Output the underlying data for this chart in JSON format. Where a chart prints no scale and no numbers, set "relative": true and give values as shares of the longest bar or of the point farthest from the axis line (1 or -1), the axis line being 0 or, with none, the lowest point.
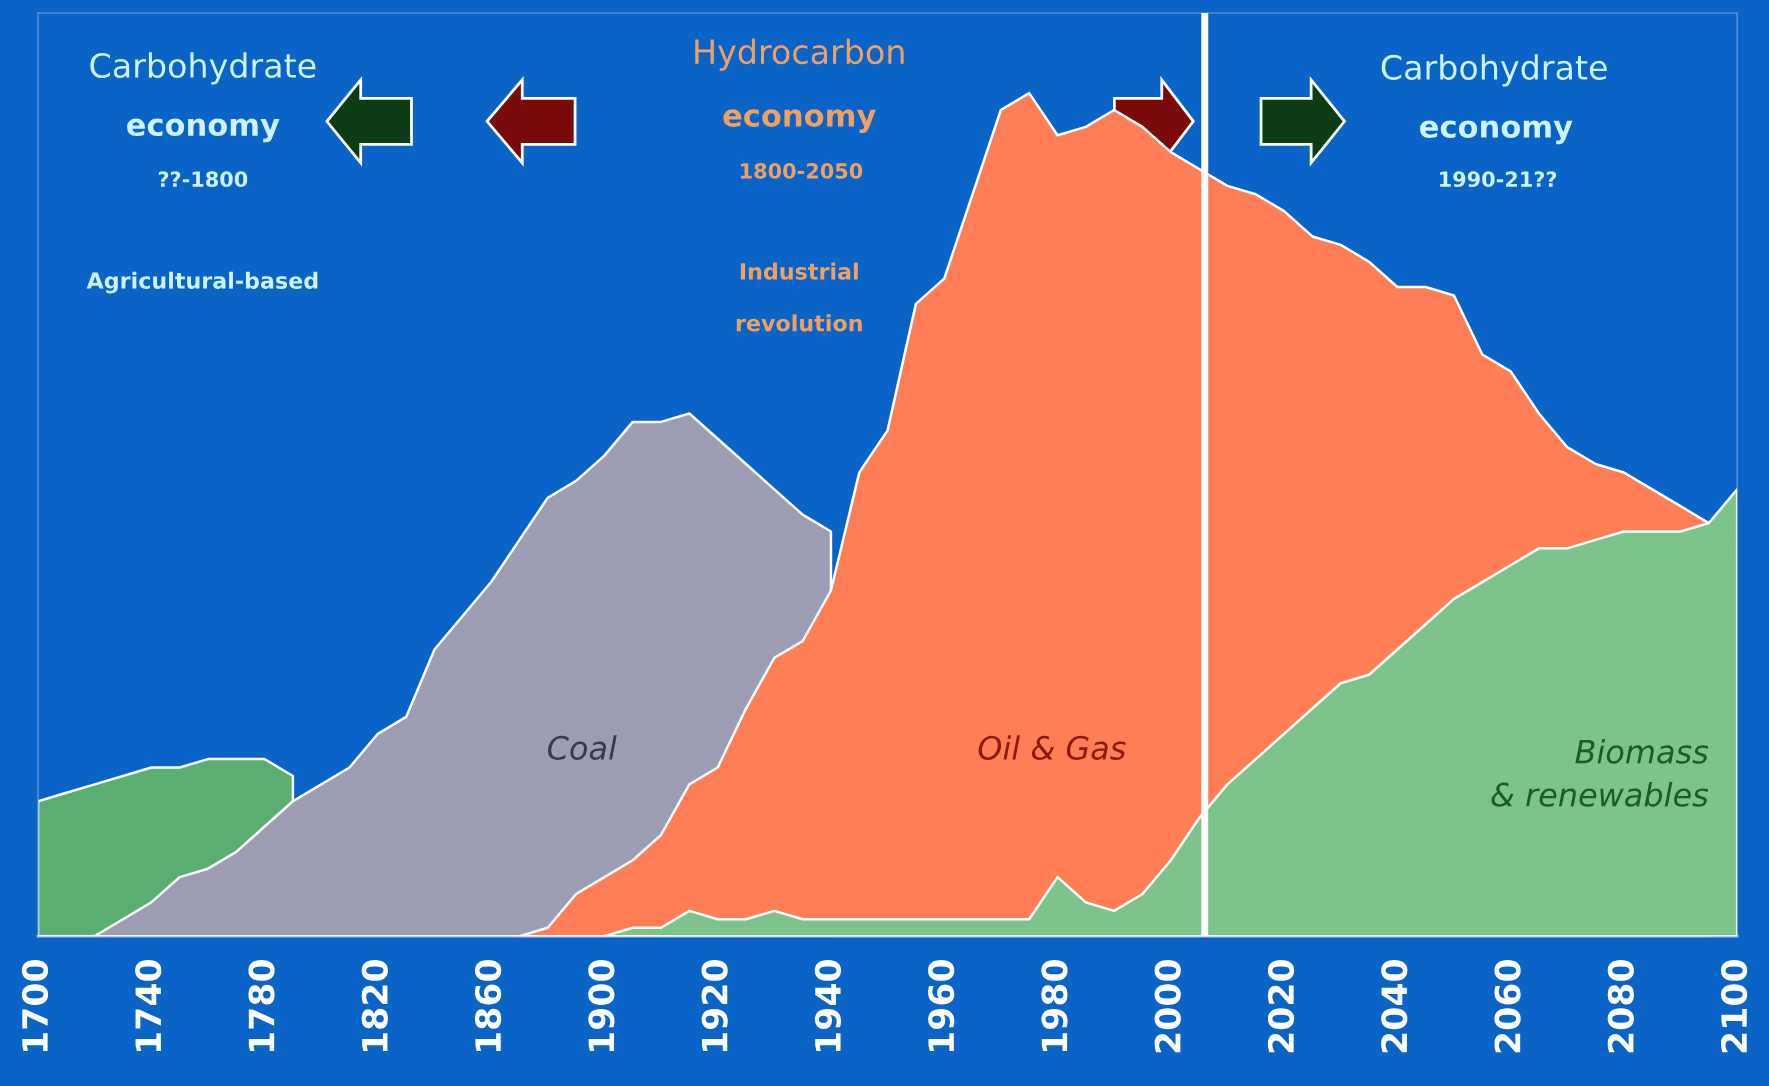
{
  "chart_data": {
    "type": "area",
    "relative": true,
    "categories": [
      "1700",
      null,
      null,
      null,
      "1740",
      null,
      null,
      null,
      "1780",
      null,
      null,
      null,
      "1820",
      null,
      null,
      null,
      "1860",
      null,
      null,
      null,
      "1900",
      null,
      null,
      null,
      "1920",
      null,
      null,
      null,
      "1940",
      null,
      null,
      null,
      "1960",
      null,
      null,
      null,
      "1980",
      null,
      null,
      null,
      "2000",
      null,
      null,
      null,
      "2020",
      null,
      null,
      null,
      "2040",
      null,
      null,
      null,
      "2060",
      null,
      null,
      null,
      "2080",
      null,
      null,
      null,
      "2100"
    ],
    "series": [
      {
        "color": "#5aae72",
        "values": [
          0.16,
          0.17,
          0.18,
          0.19,
          0.2,
          0.2,
          0.21,
          0.21,
          0.21,
          0.19,
          null,
          null,
          null,
          null,
          null,
          null,
          null,
          null,
          null,
          null,
          null,
          null,
          null,
          null,
          null,
          null,
          null,
          null,
          null,
          null,
          null,
          null,
          null,
          null,
          null,
          null,
          null,
          null,
          null,
          null,
          null,
          null,
          null,
          null,
          null,
          null,
          null,
          null,
          null,
          null,
          null,
          null,
          null,
          null,
          null,
          null,
          null,
          null,
          null,
          null,
          null
        ]
      },
      {
        "name": "Coal",
        "color": "#9c9cb4",
        "values": [
          0,
          0,
          0,
          0.02,
          0.04,
          0.07,
          0.08,
          0.1,
          0.13,
          0.16,
          0.18,
          0.2,
          0.24,
          0.26,
          0.34,
          0.38,
          0.42,
          0.47,
          0.52,
          0.54,
          0.57,
          0.61,
          0.61,
          0.62,
          0.59,
          0.56,
          0.53,
          0.5,
          0.48,
          null,
          null,
          null,
          null,
          null,
          null,
          null,
          null,
          null,
          null,
          null,
          null,
          null,
          null,
          null,
          null,
          null,
          null,
          null,
          null,
          null,
          null,
          null,
          null,
          null,
          null,
          null,
          null,
          null,
          null,
          null,
          null
        ]
      },
      {
        "name": "Oil & Gas",
        "color": "#ff7e56",
        "values": [
          null,
          null,
          null,
          null,
          null,
          null,
          null,
          null,
          null,
          null,
          null,
          null,
          null,
          null,
          null,
          null,
          null,
          0,
          0.01,
          0.05,
          0.07,
          0.09,
          0.12,
          0.18,
          0.2,
          0.27,
          0.33,
          0.35,
          0.41,
          0.55,
          0.6,
          0.75,
          0.78,
          0.88,
          0.98,
          1.0,
          0.95,
          0.96,
          0.98,
          0.96,
          0.93,
          0.91,
          0.89,
          0.88,
          0.86,
          0.83,
          0.82,
          0.8,
          0.77,
          0.77,
          0.76,
          0.69,
          0.67,
          0.62,
          0.58,
          0.56,
          0.55,
          0.53,
          0.51,
          0.49,
          null
        ]
      },
      {
        "name": "Biomass\n& renewables",
        "color": "#7cc48c",
        "values": [
          null,
          null,
          null,
          null,
          null,
          null,
          null,
          null,
          null,
          null,
          null,
          null,
          null,
          null,
          null,
          null,
          null,
          null,
          null,
          null,
          0,
          0.01,
          0.01,
          0.03,
          0.02,
          0.02,
          0.03,
          0.02,
          0.02,
          0.02,
          0.02,
          0.02,
          0.02,
          0.02,
          0.02,
          0.02,
          0.07,
          0.04,
          0.03,
          0.05,
          0.09,
          0.14,
          0.18,
          0.21,
          0.24,
          0.27,
          0.3,
          0.31,
          0.34,
          0.37,
          0.4,
          0.42,
          0.44,
          0.46,
          0.46,
          0.47,
          0.48,
          0.48,
          0.48,
          0.49,
          0.53
        ]
      }
    ],
    "annotations": [
      "Carbohydrate",
      "economy",
      "??-1800",
      "Agricultural-based",
      "Hydrocarbon",
      "economy",
      "1800-2050",
      "Industrial",
      "revolution",
      "Carbohydrate",
      "economy",
      "1990-21??"
    ]
  }
}
